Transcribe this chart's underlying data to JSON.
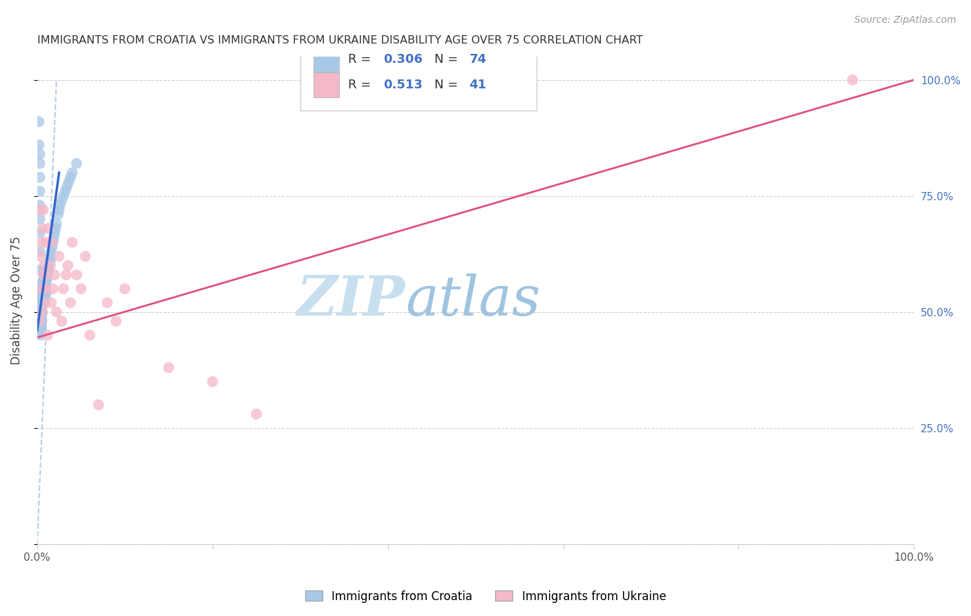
{
  "title": "IMMIGRANTS FROM CROATIA VS IMMIGRANTS FROM UKRAINE DISABILITY AGE OVER 75 CORRELATION CHART",
  "source": "Source: ZipAtlas.com",
  "ylabel": "Disability Age Over 75",
  "watermark_zip": "ZIP",
  "watermark_atlas": "atlas",
  "croatia_R": 0.306,
  "croatia_N": 74,
  "ukraine_R": 0.513,
  "ukraine_N": 41,
  "croatia_color": "#a8c8e8",
  "ukraine_color": "#f4b8c8",
  "croatia_line_color": "#3366cc",
  "ukraine_line_color": "#e05080",
  "ref_line_color": "#b0c8e0",
  "background_color": "#ffffff",
  "grid_color": "#cccccc",
  "right_axis_color": "#4472c4",
  "xlim": [
    0.0,
    1.0
  ],
  "ylim": [
    0.0,
    1.0
  ],
  "croatia_x": [
    0.002,
    0.002,
    0.003,
    0.003,
    0.003,
    0.003,
    0.003,
    0.003,
    0.003,
    0.003,
    0.003,
    0.003,
    0.003,
    0.004,
    0.004,
    0.004,
    0.004,
    0.004,
    0.004,
    0.004,
    0.004,
    0.004,
    0.005,
    0.005,
    0.005,
    0.005,
    0.005,
    0.005,
    0.006,
    0.006,
    0.006,
    0.006,
    0.007,
    0.007,
    0.007,
    0.007,
    0.008,
    0.008,
    0.008,
    0.008,
    0.009,
    0.009,
    0.009,
    0.01,
    0.01,
    0.01,
    0.01,
    0.011,
    0.011,
    0.012,
    0.012,
    0.013,
    0.013,
    0.014,
    0.015,
    0.015,
    0.016,
    0.017,
    0.018,
    0.019,
    0.02,
    0.021,
    0.022,
    0.024,
    0.025,
    0.026,
    0.028,
    0.03,
    0.032,
    0.034,
    0.036,
    0.038,
    0.04,
    0.045
  ],
  "croatia_y": [
    0.86,
    0.91,
    0.84,
    0.82,
    0.79,
    0.76,
    0.73,
    0.7,
    0.67,
    0.63,
    0.59,
    0.56,
    0.53,
    0.55,
    0.53,
    0.51,
    0.5,
    0.49,
    0.48,
    0.47,
    0.46,
    0.45,
    0.52,
    0.51,
    0.5,
    0.49,
    0.48,
    0.47,
    0.55,
    0.54,
    0.53,
    0.52,
    0.57,
    0.56,
    0.55,
    0.54,
    0.59,
    0.58,
    0.57,
    0.56,
    0.55,
    0.54,
    0.53,
    0.57,
    0.56,
    0.55,
    0.54,
    0.58,
    0.57,
    0.59,
    0.58,
    0.6,
    0.59,
    0.61,
    0.62,
    0.61,
    0.63,
    0.64,
    0.65,
    0.66,
    0.67,
    0.68,
    0.69,
    0.71,
    0.72,
    0.73,
    0.74,
    0.75,
    0.76,
    0.77,
    0.78,
    0.79,
    0.8,
    0.82
  ],
  "ukraine_x": [
    0.003,
    0.004,
    0.004,
    0.005,
    0.005,
    0.006,
    0.006,
    0.007,
    0.007,
    0.008,
    0.009,
    0.01,
    0.01,
    0.011,
    0.012,
    0.013,
    0.015,
    0.016,
    0.017,
    0.018,
    0.02,
    0.022,
    0.025,
    0.028,
    0.03,
    0.033,
    0.035,
    0.038,
    0.04,
    0.045,
    0.05,
    0.055,
    0.06,
    0.07,
    0.08,
    0.09,
    0.1,
    0.15,
    0.2,
    0.25,
    0.93
  ],
  "ukraine_y": [
    0.48,
    0.62,
    0.72,
    0.55,
    0.65,
    0.5,
    0.68,
    0.58,
    0.72,
    0.6,
    0.52,
    0.55,
    0.65,
    0.58,
    0.45,
    0.68,
    0.6,
    0.52,
    0.65,
    0.55,
    0.58,
    0.5,
    0.62,
    0.48,
    0.55,
    0.58,
    0.6,
    0.52,
    0.65,
    0.58,
    0.55,
    0.62,
    0.45,
    0.3,
    0.52,
    0.48,
    0.55,
    0.38,
    0.35,
    0.28,
    1.0
  ],
  "ukraine_line_x0": 0.0,
  "ukraine_line_y0": 0.445,
  "ukraine_line_x1": 1.0,
  "ukraine_line_y1": 1.0,
  "croatia_line_x0": 0.0,
  "croatia_line_y0": 0.46,
  "croatia_line_x1": 0.025,
  "croatia_line_y1": 0.8,
  "ref_line_x0": 0.0,
  "ref_line_y0": 0.0,
  "ref_line_x1": 0.022,
  "ref_line_y1": 1.0,
  "legend_R_color": "#4472c4",
  "legend_N_color": "#4472c4"
}
